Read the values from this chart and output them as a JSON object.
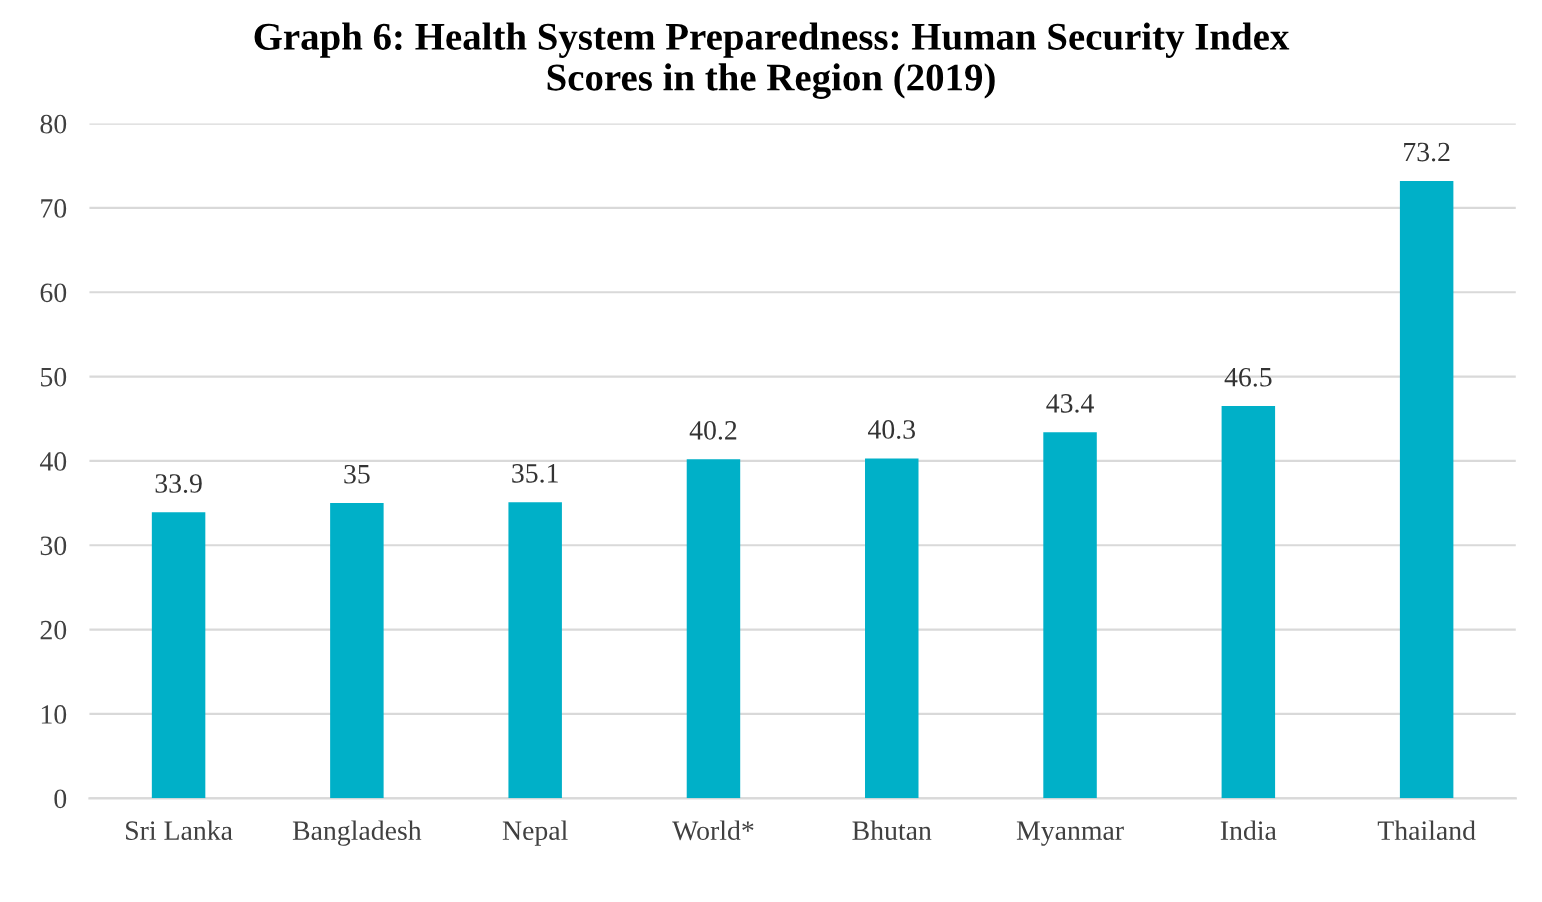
{
  "chart_data": {
    "type": "bar",
    "title": "Graph 6: Health System Preparedness: Human Security Index\nScores in the Region (2019)",
    "categories": [
      "Sri Lanka",
      "Bangladesh",
      "Nepal",
      "World*",
      "Bhutan",
      "Myanmar",
      "India",
      "Thailand"
    ],
    "values": [
      33.9,
      35,
      35.1,
      40.2,
      40.3,
      43.4,
      46.5,
      73.2
    ],
    "color": "#00b0c8",
    "ylim": [
      0,
      80
    ],
    "yticks": [
      0,
      10,
      20,
      30,
      40,
      50,
      60,
      70,
      80
    ],
    "grid": "y",
    "data_labels": true
  }
}
